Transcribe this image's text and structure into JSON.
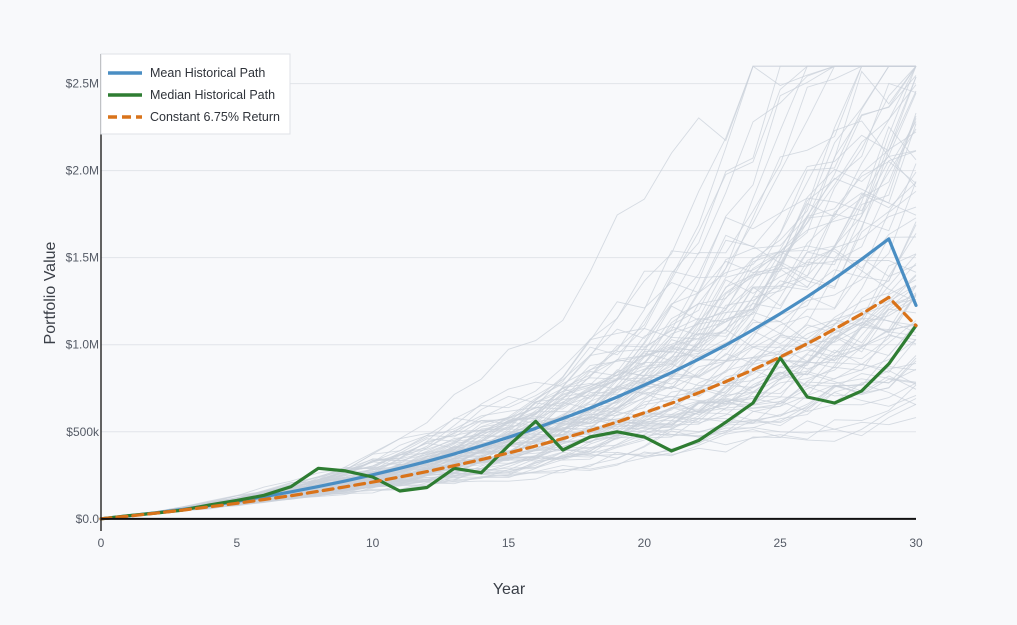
{
  "chart_data": {
    "type": "line",
    "title": "",
    "xlabel": "Year",
    "ylabel": "Portfolio Value",
    "xlim": [
      0,
      30
    ],
    "ylim": [
      -70000,
      2670000
    ],
    "x_ticks": [
      0,
      5,
      10,
      15,
      20,
      25,
      30
    ],
    "x_tick_labels": [
      "0",
      "5",
      "10",
      "15",
      "20",
      "25",
      "30"
    ],
    "y_ticks": [
      0,
      500000,
      1000000,
      1500000,
      2000000,
      2500000
    ],
    "y_tick_labels": [
      "$0.0",
      "$500k",
      "$1.0M",
      "$1.5M",
      "$2.0M",
      "$2.5M"
    ],
    "grid": true,
    "legend_position": "top-left",
    "x": [
      0,
      1,
      2,
      3,
      4,
      5,
      6,
      7,
      8,
      9,
      10,
      11,
      12,
      13,
      14,
      15,
      16,
      17,
      18,
      19,
      20,
      21,
      22,
      23,
      24,
      25,
      26,
      27,
      28,
      29,
      30
    ],
    "series": [
      {
        "name": "Mean Historical Path",
        "color": "#4a8ec3",
        "style": "solid",
        "values": [
          0,
          17000,
          34000,
          54000,
          76000,
          100000,
          127000,
          155000,
          185000,
          218000,
          253000,
          290000,
          330000,
          373000,
          419000,
          468000,
          520000,
          576000,
          636000,
          700000,
          768000,
          840000,
          917000,
          998000,
          1085000,
          1178000,
          1276000,
          1380000,
          1491000,
          1608000,
          1226000
        ]
      },
      {
        "name": "Median Historical Path",
        "color": "#2e7d32",
        "style": "solid",
        "values": [
          0,
          18000,
          33000,
          50000,
          80000,
          105000,
          135000,
          185000,
          290000,
          275000,
          240000,
          160000,
          180000,
          290000,
          265000,
          420000,
          560000,
          395000,
          470000,
          500000,
          470000,
          390000,
          450000,
          555000,
          665000,
          925000,
          700000,
          665000,
          735000,
          890000,
          1110000
        ]
      },
      {
        "name": "Constant 6.75% Return",
        "color": "#d9731a",
        "style": "dashed",
        "values": [
          0,
          15000,
          32000,
          50000,
          69000,
          89000,
          111000,
          133000,
          158000,
          184000,
          211000,
          240000,
          271000,
          305000,
          340000,
          378000,
          418000,
          461000,
          507000,
          556000,
          609000,
          664000,
          724000,
          788000,
          856000,
          929000,
          1006000,
          1089000,
          1177000,
          1272000,
          1110000
        ]
      }
    ],
    "background_paths": {
      "count": 100,
      "color": "#c9d0da",
      "description_note": ""
    }
  }
}
